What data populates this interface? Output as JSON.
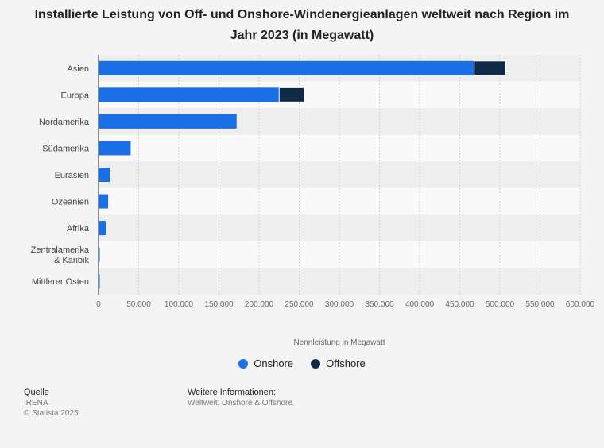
{
  "chart_data": {
    "type": "bar",
    "orientation": "horizontal",
    "stacked": true,
    "title": "Installierte Leistung von Off- und Onshore-Windenergieanlagen weltweit nach Region im Jahr 2023 (in Megawatt)",
    "xlabel": "Nennleistung in Megawatt",
    "xlim": [
      0,
      600000
    ],
    "xticks": [
      "0",
      "50.000",
      "100.000",
      "150.000",
      "200.000",
      "250.000",
      "300.000",
      "350.000",
      "400.000",
      "450.000",
      "500.000",
      "550.000",
      "600.000"
    ],
    "categories": [
      "Asien",
      "Europa",
      "Nordamerika",
      "Südamerika",
      "Eurasien",
      "Ozeanien",
      "Afrika",
      "Zentralamerika & Karibik",
      "Mittlerer Osten"
    ],
    "category_lines": [
      [
        "Asien"
      ],
      [
        "Europa"
      ],
      [
        "Nordamerika"
      ],
      [
        "Südamerika"
      ],
      [
        "Eurasien"
      ],
      [
        "Ozeanien"
      ],
      [
        "Afrika"
      ],
      [
        "Zentralamerika",
        "& Karibik"
      ],
      [
        "Mittlerer Osten"
      ]
    ],
    "series": [
      {
        "name": "Onshore",
        "color": "#1a6ee6",
        "values": [
          468000,
          225000,
          172000,
          40000,
          14000,
          12000,
          9000,
          1500,
          1500
        ]
      },
      {
        "name": "Offshore",
        "color": "#0e2a47",
        "values": [
          39000,
          31000,
          0,
          0,
          0,
          0,
          0,
          0,
          0
        ]
      }
    ],
    "legend_position": "bottom",
    "grid": true
  },
  "source": {
    "heading": "Quelle",
    "name": "IRENA",
    "copyright": "© Statista 2025"
  },
  "info": {
    "heading": "Weitere Informationen:",
    "text": "Weltweit; Onshore & Offshore."
  }
}
